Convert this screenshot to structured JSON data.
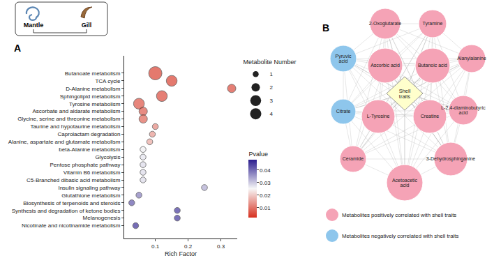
{
  "header": {
    "labels": [
      "Mantle",
      "Gill"
    ]
  },
  "panel_labels": [
    "A",
    "B"
  ],
  "chart_data": {
    "type": "scatter",
    "x_label": "Rich Factor",
    "categories": [
      "Butanoate metabolism",
      "TCA cycle",
      "D-Alanine metabolism",
      "Sphingolipid metabolism",
      "Tyrosine metabolism",
      "Ascorbate and aldarate metabolism",
      "Glycine, serine and threonine metabolism",
      "Taurine and hypotaurine metabolism",
      "Caprolactam degradation",
      "Alanine, aspartate and glutamate metabolism",
      "beta-Alanine metabolism",
      "Glycolysis",
      "Pentose phosphate pathway",
      "Vitamin B6 metabolism",
      "C5-Branched dibasic acid metabolism",
      "Insulin signaling pathway",
      "Glutathione metabolism",
      "Biosynthesis of terpenoids and steroids",
      "Synthesis and degradation of ketone bodies",
      "Melanogenesis",
      "Nicotinate and nicotinamide metabolism"
    ],
    "values": [
      0.1,
      0.15,
      0.333,
      0.12,
      0.05,
      0.063,
      0.063,
      0.1,
      0.091,
      0.083,
      0.0625,
      0.0625,
      0.0625,
      0.0625,
      0.0625,
      0.25,
      0.05,
      0.028,
      0.167,
      0.167,
      0.04
    ],
    "metabolite_number": [
      4,
      3,
      2,
      3,
      3,
      2,
      2,
      1,
      1,
      1,
      1,
      1,
      1,
      1,
      1,
      1,
      1,
      1,
      1,
      1,
      1
    ],
    "pvalue": [
      0.004,
      0.004,
      0.005,
      0.005,
      0.006,
      0.007,
      0.008,
      0.012,
      0.014,
      0.016,
      0.026,
      0.027,
      0.028,
      0.028,
      0.028,
      0.033,
      0.038,
      0.042,
      0.045,
      0.045,
      0.046
    ],
    "size_legend": {
      "title": "Metabolite Number",
      "values": [
        1,
        2,
        3,
        4
      ],
      "color": "#222222"
    },
    "color_bar": {
      "title": "Pvalue",
      "range": [
        0.002,
        0.048
      ],
      "ticks": [
        0.01,
        0.02,
        0.03,
        0.04
      ],
      "colors": [
        "#d7301f",
        "#f7f7f7",
        "#2b1d8e"
      ]
    },
    "xlim": [
      0.005,
      0.35
    ],
    "xticks": [
      0.1,
      0.2,
      0.3
    ],
    "grid": false
  },
  "network": {
    "center": "Shell traits",
    "nodes": [
      {
        "label": "2-Oxoglutarate",
        "group": "positive"
      },
      {
        "label": "Tyramine",
        "group": "positive"
      },
      {
        "label": "Pyruvic acid",
        "group": "negative"
      },
      {
        "label": "Ascorbic acid",
        "group": "positive"
      },
      {
        "label": "Butanoic acid",
        "group": "positive"
      },
      {
        "label": "Alanylalanine",
        "group": "positive"
      },
      {
        "label": "Citrate",
        "group": "negative"
      },
      {
        "label": "L-Tyrosine",
        "group": "positive"
      },
      {
        "label": "Creatine",
        "group": "positive"
      },
      {
        "label": "L-2,4-diaminobutyric acid",
        "group": "positive"
      },
      {
        "label": "Ceramide",
        "group": "positive"
      },
      {
        "label": "3-Dehydrosphinganine",
        "group": "positive"
      },
      {
        "label": "Acetoacetic acid",
        "group": "positive"
      }
    ],
    "legend": [
      {
        "group": "positive",
        "label": "Metabolites positively correlated with shell traits",
        "color": "#f5a3b6"
      },
      {
        "group": "negative",
        "label": "Metabolites negatively correlated with shell traits",
        "color": "#8ec6ec"
      }
    ]
  }
}
